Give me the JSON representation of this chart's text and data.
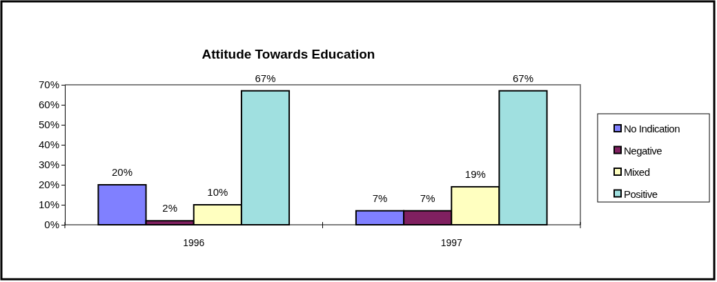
{
  "chart_data": {
    "type": "bar",
    "title": "Attitude Towards Education",
    "categories": [
      "1996",
      "1997"
    ],
    "series": [
      {
        "name": "No Indication",
        "color": "#8080ff",
        "values": [
          20,
          7
        ],
        "value_labels": [
          "20%",
          "7%"
        ]
      },
      {
        "name": "Negative",
        "color": "#802060",
        "values": [
          2,
          7
        ],
        "value_labels": [
          "2%",
          "7%"
        ]
      },
      {
        "name": "Mixed",
        "color": "#ffffc0",
        "values": [
          10,
          19
        ],
        "value_labels": [
          "10%",
          "19%"
        ]
      },
      {
        "name": "Positive",
        "color": "#a0e0e0",
        "values": [
          67,
          67
        ],
        "value_labels": [
          "67%",
          "67%"
        ]
      }
    ],
    "ylim": [
      0,
      70
    ],
    "yticks": [
      {
        "value": 0,
        "label": "0%"
      },
      {
        "value": 10,
        "label": "10%"
      },
      {
        "value": 20,
        "label": "20%"
      },
      {
        "value": 30,
        "label": "30%"
      },
      {
        "value": 40,
        "label": "40%"
      },
      {
        "value": 50,
        "label": "50%"
      },
      {
        "value": 60,
        "label": "60%"
      },
      {
        "value": 70,
        "label": "70%"
      }
    ],
    "legend": "right"
  }
}
